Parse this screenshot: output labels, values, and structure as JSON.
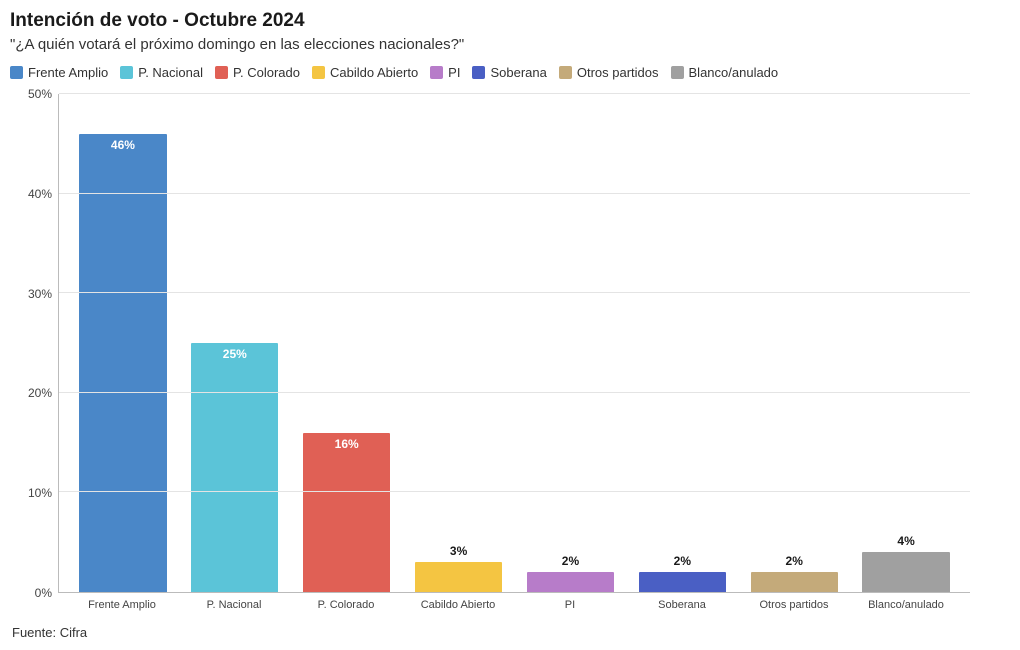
{
  "chart": {
    "type": "bar",
    "title": "Intención de voto - Octubre 2024",
    "subtitle": "\"¿A quién votará el próximo domingo en las elecciones nacionales?\"",
    "source": "Fuente: Cifra",
    "background_color": "#ffffff",
    "grid_color": "#e4e4e4",
    "axis_color": "#bbbbbb",
    "title_fontsize": 19,
    "subtitle_fontsize": 15,
    "label_fontsize": 12,
    "xlabel_fontsize": 11,
    "ymax": 50,
    "ytick_step": 10,
    "yticks": [
      "0%",
      "10%",
      "20%",
      "30%",
      "40%",
      "50%"
    ],
    "bar_width_pct": 78,
    "label_inside_color": "#ffffff",
    "label_above_color": "#1a1a1a",
    "label_inside_threshold": 8,
    "series": [
      {
        "name": "Frente Amplio",
        "value": 46,
        "label": "46%",
        "color": "#4a87c8"
      },
      {
        "name": "P. Nacional",
        "value": 25,
        "label": "25%",
        "color": "#5bc4d8"
      },
      {
        "name": "P. Colorado",
        "value": 16,
        "label": "16%",
        "color": "#e06055"
      },
      {
        "name": "Cabildo Abierto",
        "value": 3,
        "label": "3%",
        "color": "#f4c542"
      },
      {
        "name": "PI",
        "value": 2,
        "label": "2%",
        "color": "#b77cc9"
      },
      {
        "name": "Soberana",
        "value": 2,
        "label": "2%",
        "color": "#4a5fc4"
      },
      {
        "name": "Otros partidos",
        "value": 2,
        "label": "2%",
        "color": "#c4aa7a"
      },
      {
        "name": "Blanco/anulado",
        "value": 4,
        "label": "4%",
        "color": "#a0a0a0"
      }
    ]
  }
}
